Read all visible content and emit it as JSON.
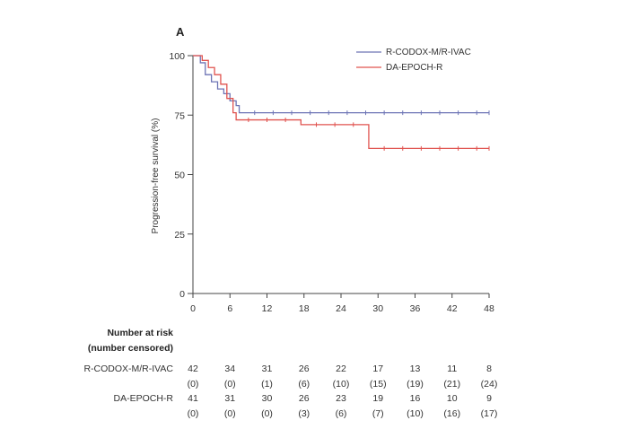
{
  "panel_label": "A",
  "chart_data": {
    "type": "line",
    "subtype": "kaplan-meier",
    "ylabel": "Progression-free survival (%)",
    "xlabel": "",
    "xlim": [
      0,
      48
    ],
    "ylim": [
      0,
      100
    ],
    "x_ticks": [
      0,
      6,
      12,
      18,
      24,
      30,
      36,
      42,
      48
    ],
    "y_ticks": [
      0,
      25,
      50,
      75,
      100
    ],
    "grid": false,
    "legend_position": "top-right",
    "series": [
      {
        "name": "R-CODOX-M/R-IVAC",
        "color": "#6d74b5",
        "points": [
          [
            0,
            100
          ],
          [
            1.2,
            97
          ],
          [
            2,
            92
          ],
          [
            3,
            89
          ],
          [
            4,
            86
          ],
          [
            5,
            84
          ],
          [
            6,
            81
          ],
          [
            7,
            79
          ],
          [
            7.5,
            76
          ],
          [
            48,
            76
          ]
        ],
        "censor_x": [
          10,
          13,
          16,
          19,
          22,
          25,
          28,
          31,
          34,
          37,
          40,
          43,
          46,
          48
        ]
      },
      {
        "name": "DA-EPOCH-R",
        "color": "#e0534f",
        "points": [
          [
            0,
            100
          ],
          [
            1.5,
            98
          ],
          [
            2.5,
            95
          ],
          [
            3.5,
            92
          ],
          [
            4.5,
            88
          ],
          [
            5.5,
            82
          ],
          [
            6.5,
            76
          ],
          [
            7,
            73
          ],
          [
            17.5,
            73
          ],
          [
            17.5,
            71
          ],
          [
            28.5,
            71
          ],
          [
            28.5,
            61
          ],
          [
            48,
            61
          ]
        ],
        "censor_x": [
          9,
          12,
          15,
          20,
          23,
          26,
          31,
          34,
          37,
          40,
          43,
          46,
          48
        ]
      }
    ]
  },
  "risk_table": {
    "header_line1": "Number at risk",
    "header_line2": "(number censored)",
    "rows": [
      {
        "label": "R-CODOX-M/R-IVAC",
        "at_risk": [
          "42",
          "34",
          "31",
          "26",
          "22",
          "17",
          "13",
          "11",
          "8"
        ],
        "censored": [
          "(0)",
          "(0)",
          "(1)",
          "(6)",
          "(10)",
          "(15)",
          "(19)",
          "(21)",
          "(24)"
        ]
      },
      {
        "label": "DA-EPOCH-R",
        "at_risk": [
          "41",
          "31",
          "30",
          "26",
          "23",
          "19",
          "16",
          "10",
          "9"
        ],
        "censored": [
          "(0)",
          "(0)",
          "(0)",
          "(3)",
          "(6)",
          "(7)",
          "(10)",
          "(16)",
          "(17)"
        ]
      }
    ]
  }
}
